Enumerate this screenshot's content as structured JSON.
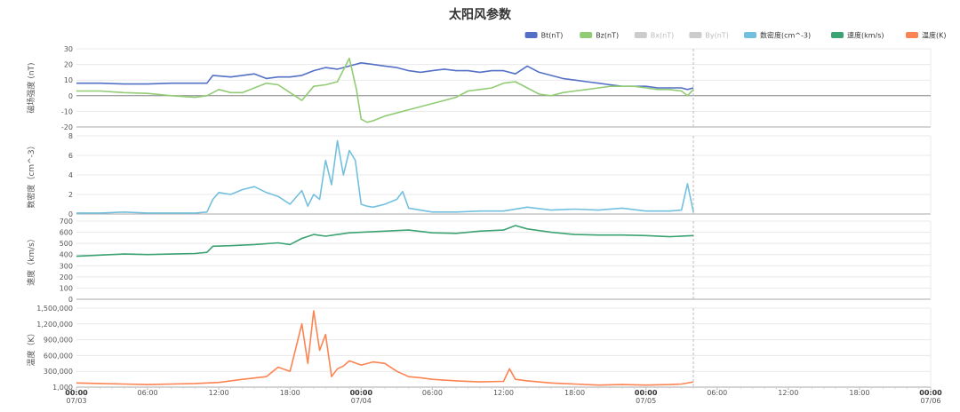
{
  "chart_data": {
    "type": "line",
    "title": "太阳风参数",
    "legend_position": "top-right",
    "x_ticks": [
      {
        "label": "00:00",
        "sub": "07/03",
        "bold": true
      },
      {
        "label": "06:00",
        "sub": ""
      },
      {
        "label": "12:00",
        "sub": ""
      },
      {
        "label": "18:00",
        "sub": ""
      },
      {
        "label": "00:00",
        "sub": "07/04",
        "bold": true
      },
      {
        "label": "06:00",
        "sub": ""
      },
      {
        "label": "12:00",
        "sub": ""
      },
      {
        "label": "18:00",
        "sub": ""
      },
      {
        "label": "00:00",
        "sub": "07/05",
        "bold": true
      },
      {
        "label": "06:00",
        "sub": ""
      },
      {
        "label": "12:00",
        "sub": ""
      },
      {
        "label": "18:00",
        "sub": ""
      },
      {
        "label": "00:00",
        "sub": "07/06",
        "bold": true
      }
    ],
    "x_range_hours": [
      0,
      72
    ],
    "data_end_hour": 52,
    "legend": [
      {
        "name": "Bt(nT)",
        "color": "#5470c6",
        "active": true
      },
      {
        "name": "Bz(nT)",
        "color": "#91cc75",
        "active": true
      },
      {
        "name": "Bx(nT)",
        "color": "#cccccc",
        "active": false
      },
      {
        "name": "By(nT)",
        "color": "#cccccc",
        "active": false
      },
      {
        "name": "数密度(cm^-3)",
        "color": "#73c0de",
        "active": true
      },
      {
        "name": "速度(km/s)",
        "color": "#3ba272",
        "active": true
      },
      {
        "name": "温度(K)",
        "color": "#fc8452",
        "active": true
      }
    ],
    "panels": [
      {
        "ylabel": "磁场强度 (nT)",
        "ylim": [
          -20,
          30
        ],
        "yticks": [
          "-20",
          "-10",
          "0",
          "10",
          "20",
          "30"
        ],
        "ytick_values": [
          -20,
          -10,
          0,
          10,
          20,
          30
        ],
        "zero_line": true,
        "series": [
          {
            "name": "Bt(nT)",
            "color": "#5470c6",
            "x": [
              0,
              2,
              4,
              6,
              8,
              10,
              11,
              11.5,
              13,
              15,
              16,
              17,
              18,
              19,
              20,
              21,
              22,
              23,
              24,
              25,
              26,
              27,
              28,
              29,
              30,
              31,
              32,
              33,
              34,
              35,
              36,
              37,
              38,
              39,
              40,
              41,
              42,
              43,
              44,
              45,
              46,
              47,
              48,
              49,
              50,
              51,
              51.5,
              52
            ],
            "y": [
              8,
              8,
              7.5,
              7.5,
              8,
              8,
              8,
              13,
              12,
              14,
              11,
              12,
              12,
              13,
              16,
              18,
              17,
              19,
              21,
              20,
              19,
              18,
              16,
              15,
              16,
              17,
              16,
              16,
              15,
              16,
              16,
              14,
              19,
              15,
              13,
              11,
              10,
              9,
              8,
              7,
              6,
              6,
              6,
              5,
              5,
              5,
              4,
              5
            ]
          },
          {
            "name": "Bz(nT)",
            "color": "#91cc75",
            "x": [
              0,
              2,
              4,
              6,
              8,
              10,
              11,
              12,
              13,
              14,
              15,
              16,
              17,
              18,
              19,
              20,
              21,
              22,
              23,
              23.6,
              24,
              24.5,
              25,
              26,
              27,
              28,
              29,
              30,
              31,
              32,
              33,
              34,
              35,
              36,
              37,
              38,
              39,
              40,
              41,
              42,
              43,
              44,
              45,
              46,
              47,
              48,
              49,
              50,
              51,
              51.5,
              52
            ],
            "y": [
              3,
              3,
              2,
              1.5,
              0,
              -1,
              0,
              4,
              2,
              2,
              5,
              8,
              7,
              2,
              -3,
              6,
              7,
              9,
              24,
              4,
              -15,
              -17,
              -16,
              -13,
              -11,
              -9,
              -7,
              -5,
              -3,
              -1,
              3,
              4,
              5,
              8,
              9,
              5,
              1,
              0,
              2,
              3,
              4,
              5,
              6,
              6,
              6,
              5,
              4,
              4,
              3,
              0,
              4
            ]
          }
        ]
      },
      {
        "ylabel": "数密度（cm^-3）",
        "ylim": [
          0,
          8
        ],
        "yticks": [
          "0",
          "2",
          "4",
          "6",
          "8"
        ],
        "ytick_values": [
          0,
          2,
          4,
          6,
          8
        ],
        "zero_line": false,
        "series": [
          {
            "name": "数密度(cm^-3)",
            "color": "#73c0de",
            "x": [
              0,
              2,
              4,
              6,
              8,
              10,
              11,
              11.5,
              12,
              13,
              14,
              15,
              16,
              17,
              18,
              19,
              19.5,
              20,
              20.5,
              21,
              21.5,
              22,
              22.5,
              23,
              23.5,
              24,
              24.5,
              25,
              26,
              27,
              27.5,
              28,
              30,
              32,
              34,
              36,
              38,
              40,
              42,
              44,
              46,
              48,
              50,
              51,
              51.5,
              52
            ],
            "y": [
              0.1,
              0.1,
              0.2,
              0.1,
              0.1,
              0.1,
              0.2,
              1.5,
              2.2,
              2.0,
              2.5,
              2.8,
              2.2,
              1.8,
              1.0,
              2.4,
              0.8,
              2.0,
              1.5,
              5.5,
              3.0,
              7.5,
              4.0,
              6.5,
              5.5,
              1.0,
              0.8,
              0.7,
              1.0,
              1.5,
              2.3,
              0.6,
              0.2,
              0.2,
              0.3,
              0.3,
              0.7,
              0.4,
              0.5,
              0.4,
              0.6,
              0.3,
              0.3,
              0.4,
              3.1,
              0.2
            ]
          }
        ]
      },
      {
        "ylabel": "速度（km/s）",
        "ylim": [
          0,
          700
        ],
        "yticks": [
          "0",
          "100",
          "200",
          "300",
          "400",
          "500",
          "600",
          "700"
        ],
        "ytick_values": [
          0,
          100,
          200,
          300,
          400,
          500,
          600,
          700
        ],
        "zero_line": false,
        "series": [
          {
            "name": "速度(km/s)",
            "color": "#3ba272",
            "x": [
              0,
              2,
              4,
              6,
              8,
              10,
              11,
              11.5,
              13,
              15,
              17,
              18,
              19,
              20,
              21,
              22,
              23,
              24,
              26,
              28,
              30,
              32,
              34,
              36,
              37,
              38,
              40,
              42,
              44,
              46,
              48,
              50,
              52
            ],
            "y": [
              385,
              395,
              405,
              400,
              405,
              410,
              420,
              475,
              480,
              490,
              505,
              490,
              545,
              580,
              565,
              580,
              595,
              600,
              610,
              620,
              595,
              590,
              610,
              620,
              660,
              630,
              600,
              580,
              575,
              575,
              570,
              560,
              570
            ]
          }
        ]
      },
      {
        "ylabel": "温度（K）",
        "ylim": [
          1000,
          1500000
        ],
        "yticks": [
          "1,000",
          "300,000",
          "600,000",
          "900,000",
          "1,200,000",
          "1,500,000"
        ],
        "ytick_values": [
          1000,
          300000,
          600000,
          900000,
          1200000,
          1500000
        ],
        "zero_line": false,
        "series": [
          {
            "name": "温度(K)",
            "color": "#fc8452",
            "x": [
              0,
              2,
              4,
              6,
              8,
              10,
              12,
              14,
              16,
              17,
              18,
              19,
              19.5,
              20,
              20.5,
              21,
              21.5,
              22,
              22.5,
              23,
              24,
              25,
              26,
              27,
              28,
              29,
              30,
              32,
              34,
              36,
              36.5,
              37,
              38,
              40,
              42,
              44,
              46,
              48,
              50,
              51,
              52
            ],
            "y": [
              80000,
              70000,
              60000,
              50000,
              60000,
              70000,
              90000,
              150000,
              200000,
              380000,
              300000,
              1200000,
              450000,
              1450000,
              700000,
              1000000,
              200000,
              350000,
              400000,
              500000,
              420000,
              480000,
              450000,
              300000,
              200000,
              180000,
              150000,
              120000,
              100000,
              110000,
              350000,
              150000,
              120000,
              80000,
              60000,
              40000,
              50000,
              40000,
              50000,
              60000,
              100000
            ]
          }
        ]
      }
    ]
  }
}
